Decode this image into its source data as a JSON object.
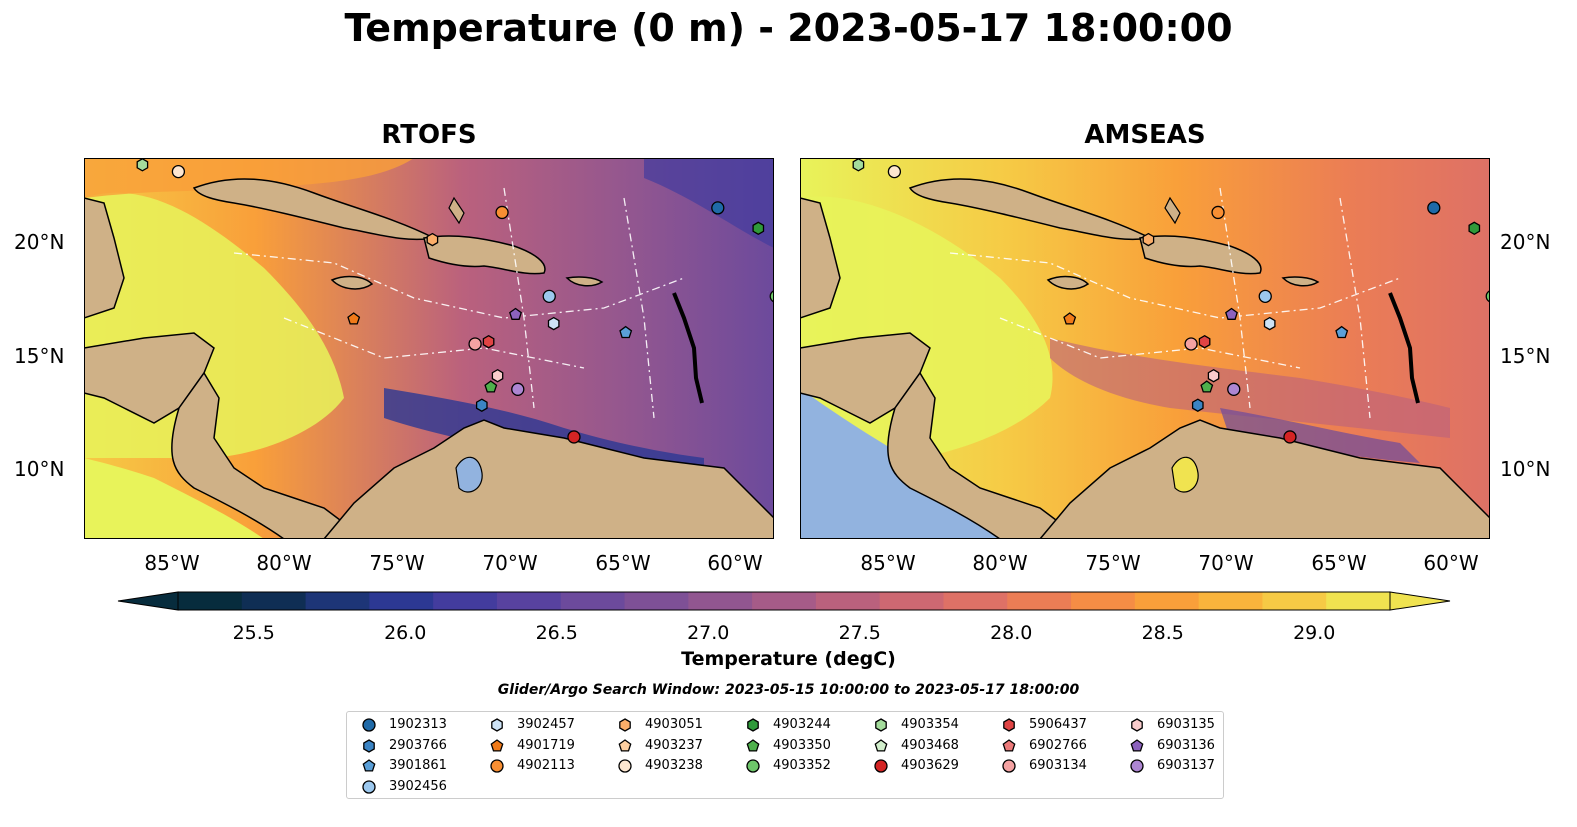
{
  "title": "Temperature (0 m) - 2023-05-17 18:00:00",
  "panels": [
    {
      "title": "RTOFS",
      "lat_ticks": [
        "20°N",
        "15°N",
        "10°N"
      ],
      "lat_side": "left"
    },
    {
      "title": "AMSEAS",
      "lat_ticks": [
        "20°N",
        "15°N",
        "10°N"
      ],
      "lat_side": "right"
    }
  ],
  "lon_ticks": [
    "85°W",
    "80°W",
    "75°W",
    "70°W",
    "65°W",
    "60°W"
  ],
  "colorbar": {
    "label": "Temperature (degC)",
    "ticks": [
      "25.5",
      "26.0",
      "26.5",
      "27.0",
      "27.5",
      "28.0",
      "28.5",
      "29.0"
    ],
    "range": [
      25.25,
      29.25
    ],
    "colors": [
      "#072c3d",
      "#0f2e54",
      "#1d3577",
      "#2c3893",
      "#433c9e",
      "#58429f",
      "#6c4a9c",
      "#7e5096",
      "#915690",
      "#a65b88",
      "#ba617d",
      "#cd6872",
      "#de7166",
      "#eb7d55",
      "#f58d45",
      "#f99f3a",
      "#f9b43c",
      "#f6ca45",
      "#f0e350"
    ],
    "extend": "both"
  },
  "search_window": "Glider/Argo Search Window: 2023-05-15 10:00:00 to 2023-05-17 18:00:00",
  "colors": {
    "land": "#cfb187",
    "ocean_warm": "#e8f35a",
    "ocean_mid": "#f99f3a",
    "ocean_cool": "#915690",
    "pacific_amseas": "#92b3df"
  },
  "floats": [
    {
      "id": "1902313",
      "marker": "circle",
      "color": "#1f6aa8"
    },
    {
      "id": "2903766",
      "marker": "hexagon",
      "color": "#3b84c4"
    },
    {
      "id": "3901861",
      "marker": "pentagon",
      "color": "#5a9fd8"
    },
    {
      "id": "3902456",
      "marker": "circle",
      "color": "#9cc8ee"
    },
    {
      "id": "3902457",
      "marker": "hexagon",
      "color": "#cde3f6"
    },
    {
      "id": "4901719",
      "marker": "pentagon",
      "color": "#f07a19"
    },
    {
      "id": "4902113",
      "marker": "circle",
      "color": "#f88f33"
    },
    {
      "id": "4903051",
      "marker": "hexagon",
      "color": "#fbae69"
    },
    {
      "id": "4903237",
      "marker": "pentagon",
      "color": "#fdcfa0"
    },
    {
      "id": "4903238",
      "marker": "circle",
      "color": "#fde6d0"
    },
    {
      "id": "4903244",
      "marker": "hexagon",
      "color": "#2f9a3a"
    },
    {
      "id": "4903350",
      "marker": "pentagon",
      "color": "#4fb04c"
    },
    {
      "id": "4903352",
      "marker": "circle",
      "color": "#6ec66a"
    },
    {
      "id": "4903354",
      "marker": "hexagon",
      "color": "#a4dc9c"
    },
    {
      "id": "4903468",
      "marker": "pentagon",
      "color": "#d2efcc"
    },
    {
      "id": "4903629",
      "marker": "circle",
      "color": "#d42424"
    },
    {
      "id": "5906437",
      "marker": "hexagon",
      "color": "#e04444"
    },
    {
      "id": "6902766",
      "marker": "pentagon",
      "color": "#ec7a7a"
    },
    {
      "id": "6903134",
      "marker": "circle",
      "color": "#f4a2a2"
    },
    {
      "id": "6903135",
      "marker": "hexagon",
      "color": "#f9cccc"
    },
    {
      "id": "6903136",
      "marker": "pentagon",
      "color": "#8c62bd"
    },
    {
      "id": "6903137",
      "marker": "circle",
      "color": "#ad86d2"
    }
  ],
  "float_positions": [
    {
      "id": "1902313",
      "lon": -60.8,
      "lat": 21.6
    },
    {
      "id": "4903244",
      "lon": -59.0,
      "lat": 20.7
    },
    {
      "id": "4903354",
      "lon": -86.4,
      "lat": 23.5
    },
    {
      "id": "4903238",
      "lon": -84.8,
      "lat": 23.2
    },
    {
      "id": "4902113",
      "lon": -70.4,
      "lat": 21.4
    },
    {
      "id": "4903051",
      "lon": -73.5,
      "lat": 20.2
    },
    {
      "id": "3902456",
      "lon": -68.3,
      "lat": 17.7
    },
    {
      "id": "6903136",
      "lon": -69.8,
      "lat": 16.9
    },
    {
      "id": "3902457",
      "lon": -68.1,
      "lat": 16.5
    },
    {
      "id": "3901861",
      "lon": -64.9,
      "lat": 16.1
    },
    {
      "id": "4901719",
      "lon": -77.0,
      "lat": 16.7
    },
    {
      "id": "6903134",
      "lon": -71.6,
      "lat": 15.6
    },
    {
      "id": "5906437",
      "lon": -71.0,
      "lat": 15.7
    },
    {
      "id": "6903135",
      "lon": -70.6,
      "lat": 14.2
    },
    {
      "id": "4903350",
      "lon": -70.9,
      "lat": 13.7
    },
    {
      "id": "6903137",
      "lon": -69.7,
      "lat": 13.6
    },
    {
      "id": "2903766",
      "lon": -71.3,
      "lat": 12.9
    },
    {
      "id": "4903629",
      "lon": -67.2,
      "lat": 11.5
    },
    {
      "id": "4903352",
      "lon": -58.2,
      "lat": 17.7
    }
  ]
}
